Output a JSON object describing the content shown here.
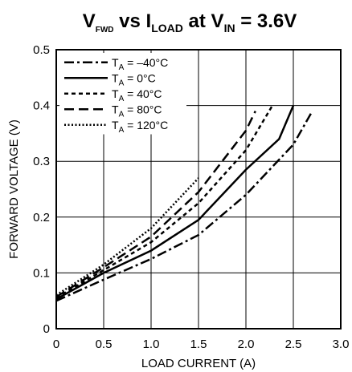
{
  "chart_data": {
    "type": "line",
    "title": {
      "v": "V",
      "v_sub": "FWD",
      "vs": " vs I",
      "i_sub": "LOAD",
      "at": " at V",
      "in_sub": "IN",
      "eq": " = 3.6V"
    },
    "xlabel": "LOAD CURRENT (A)",
    "ylabel": "FORWARD VOLTAGE (V)",
    "xlim": [
      0,
      3.0
    ],
    "ylim": [
      0,
      0.5
    ],
    "x_ticks": [
      "0",
      "0.5",
      "1.0",
      "1.5",
      "2.0",
      "2.5",
      "3.0"
    ],
    "y_ticks": [
      "0",
      "0.1",
      "0.2",
      "0.3",
      "0.4",
      "0.5"
    ],
    "grid": true,
    "legend_position": "top-left",
    "series": [
      {
        "name": "T",
        "name_sub": "A",
        "name_rest": " = –40°C",
        "dash": "dashdot",
        "points": [
          [
            0,
            0.05
          ],
          [
            0.5,
            0.088
          ],
          [
            1.0,
            0.125
          ],
          [
            1.5,
            0.168
          ],
          [
            2.0,
            0.24
          ],
          [
            2.5,
            0.33
          ],
          [
            2.7,
            0.39
          ]
        ]
      },
      {
        "name": "T",
        "name_sub": "A",
        "name_rest": " = 0°C",
        "dash": "solid",
        "points": [
          [
            0,
            0.053
          ],
          [
            0.5,
            0.1
          ],
          [
            1.0,
            0.14
          ],
          [
            1.5,
            0.195
          ],
          [
            2.0,
            0.285
          ],
          [
            2.35,
            0.34
          ],
          [
            2.5,
            0.4
          ]
        ]
      },
      {
        "name": "T",
        "name_sub": "A",
        "name_rest": " = 40°C",
        "dash": "shortdash",
        "points": [
          [
            0,
            0.055
          ],
          [
            0.5,
            0.105
          ],
          [
            1.0,
            0.155
          ],
          [
            1.5,
            0.225
          ],
          [
            2.0,
            0.32
          ],
          [
            2.28,
            0.4
          ]
        ]
      },
      {
        "name": "T",
        "name_sub": "A",
        "name_rest": " = 80°C",
        "dash": "longdash",
        "points": [
          [
            0,
            0.057
          ],
          [
            0.5,
            0.11
          ],
          [
            1.0,
            0.165
          ],
          [
            1.5,
            0.245
          ],
          [
            2.0,
            0.355
          ],
          [
            2.1,
            0.39
          ]
        ]
      },
      {
        "name": "T",
        "name_sub": "A",
        "name_rest": " = 120°C",
        "dash": "dotted",
        "points": [
          [
            0,
            0.06
          ],
          [
            0.5,
            0.115
          ],
          [
            1.0,
            0.18
          ],
          [
            1.5,
            0.27
          ]
        ]
      }
    ]
  }
}
